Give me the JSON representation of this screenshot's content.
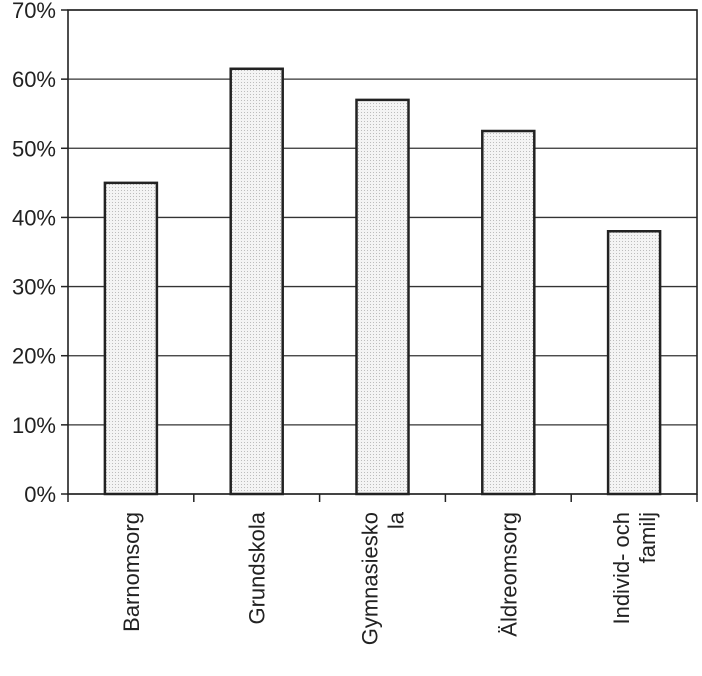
{
  "chart_data": {
    "type": "bar",
    "title": "",
    "xlabel": "",
    "ylabel": "",
    "categories": [
      [
        "Barnomsorg"
      ],
      [
        "Grundskola"
      ],
      [
        "Gymnasiesko",
        "la"
      ],
      [
        "Äldreomsorg"
      ],
      [
        "Individ- och",
        "familj"
      ]
    ],
    "values": [
      45,
      61.5,
      57,
      52.5,
      38
    ],
    "y_ticks": [
      "0%",
      "10%",
      "20%",
      "30%",
      "40%",
      "50%",
      "60%",
      "70%"
    ],
    "ylim": [
      0,
      70
    ],
    "grid": true,
    "bar_fill": "#e8e8e8",
    "bar_stroke": "#222222",
    "grid_color": "#333333"
  }
}
